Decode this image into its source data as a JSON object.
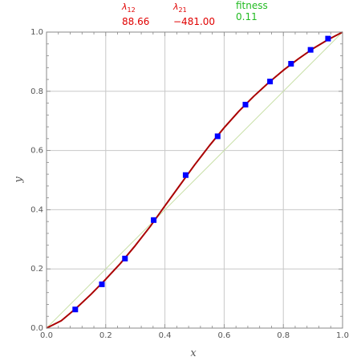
{
  "params": {
    "lambda12": {
      "symbol": "λ",
      "sub": "12",
      "value": "88.66",
      "color": "#e00000"
    },
    "lambda21": {
      "symbol": "λ",
      "sub": "21",
      "value": "−481.00",
      "color": "#e00000"
    },
    "fitness": {
      "label": "fitness",
      "value": "0.11",
      "color": "#22bb22"
    }
  },
  "chart_data": {
    "type": "scatter",
    "xlabel": "x",
    "ylabel": "y",
    "xlim": [
      0,
      1
    ],
    "ylim": [
      0,
      1
    ],
    "grid": true,
    "x_ticks": [
      "0.0",
      "0.2",
      "0.4",
      "0.6",
      "0.8",
      "1.0"
    ],
    "y_ticks": [
      "0.0",
      "0.2",
      "0.4",
      "0.6",
      "0.8",
      "1.0"
    ],
    "series": [
      {
        "kind": "points",
        "marker": "square",
        "color": "#0000ff",
        "x": [
          0.097,
          0.187,
          0.265,
          0.362,
          0.47,
          0.578,
          0.672,
          0.755,
          0.826,
          0.892,
          0.951
        ],
        "y": [
          0.063,
          0.148,
          0.235,
          0.365,
          0.517,
          0.648,
          0.755,
          0.833,
          0.893,
          0.94,
          0.978
        ]
      },
      {
        "kind": "curve",
        "color": "#aa0000",
        "x": [
          0.0,
          0.05,
          0.1,
          0.15,
          0.2,
          0.25,
          0.3,
          0.35,
          0.4,
          0.45,
          0.5,
          0.55,
          0.6,
          0.65,
          0.7,
          0.75,
          0.8,
          0.85,
          0.9,
          0.95,
          1.0
        ],
        "y": [
          0.0,
          0.025,
          0.067,
          0.114,
          0.165,
          0.219,
          0.279,
          0.343,
          0.413,
          0.482,
          0.551,
          0.616,
          0.677,
          0.733,
          0.783,
          0.829,
          0.871,
          0.909,
          0.944,
          0.974,
          1.0
        ]
      },
      {
        "kind": "reference",
        "color": "#c8e0a8",
        "x": [
          0.0,
          1.0
        ],
        "y": [
          0.0,
          1.0
        ]
      }
    ]
  }
}
